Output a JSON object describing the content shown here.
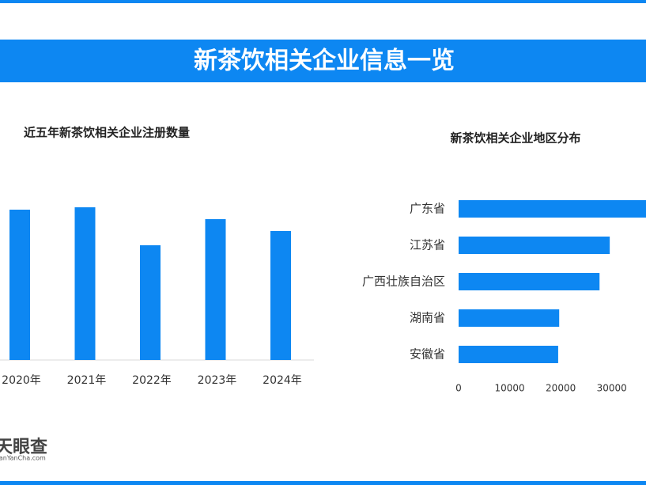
{
  "header": {
    "title": "新茶饮相关企业信息一览"
  },
  "logo": {
    "name": "天眼查",
    "site": "TianYanCha.com"
  },
  "chart_data": [
    {
      "type": "bar",
      "title": "近五年新茶饮相关企业注册数量",
      "categories": [
        "2020年",
        "2021年",
        "2022年",
        "2023年",
        "2024年"
      ],
      "values": [
        190,
        193,
        145,
        178,
        163
      ],
      "color": "#0d87f2",
      "ylim": [
        0,
        200
      ]
    },
    {
      "type": "hbar",
      "title": "新茶饮相关企业地区分布",
      "categories": [
        "广东省",
        "江苏省",
        "广西壮族自治区",
        "湖南省",
        "安徽省"
      ],
      "values": [
        38000,
        29600,
        27600,
        19700,
        19500
      ],
      "color": "#0d87f2",
      "xlim": [
        0,
        36700
      ],
      "xticks": [
        0,
        10000,
        20000,
        30000
      ]
    }
  ]
}
